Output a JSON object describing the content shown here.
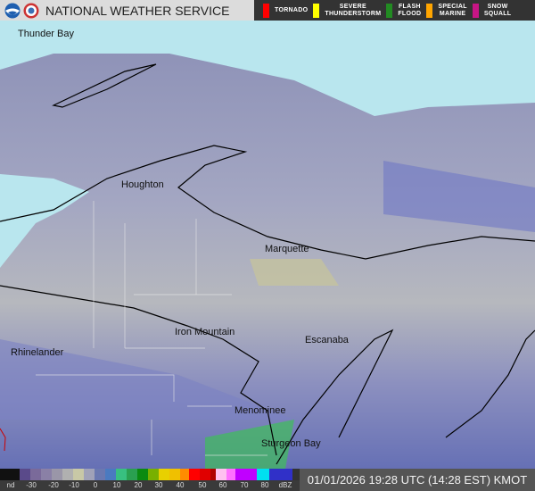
{
  "header": {
    "title": "NATIONAL WEATHER SERVICE",
    "logos": [
      "noaa-logo",
      "nws-logo"
    ]
  },
  "warnings": [
    {
      "label1": "TORNADO",
      "label2": "",
      "color": "#ff0000"
    },
    {
      "label1": "SEVERE",
      "label2": "THUNDERSTORM",
      "color": "#ffff00"
    },
    {
      "label1": "FLASH",
      "label2": "FLOOD",
      "color": "#228b22"
    },
    {
      "label1": "SPECIAL",
      "label2": "MARINE",
      "color": "#ffa500"
    },
    {
      "label1": "SNOW",
      "label2": "SQUALL",
      "color": "#c71585"
    }
  ],
  "cities": [
    "Thunder Bay",
    "Houghton",
    "Marquette",
    "Iron Mountain",
    "Escanaba",
    "Rhinelander",
    "Menominee",
    "Sturgeon Bay"
  ],
  "legend": {
    "ticks": [
      "nd",
      "-30",
      "-20",
      "-10",
      "0",
      "10",
      "20",
      "30",
      "40",
      "50",
      "60",
      "70",
      "80",
      "dBZ"
    ]
  },
  "timestamp": "01/01/2026 19:28 UTC (14:28 EST) KMOT"
}
